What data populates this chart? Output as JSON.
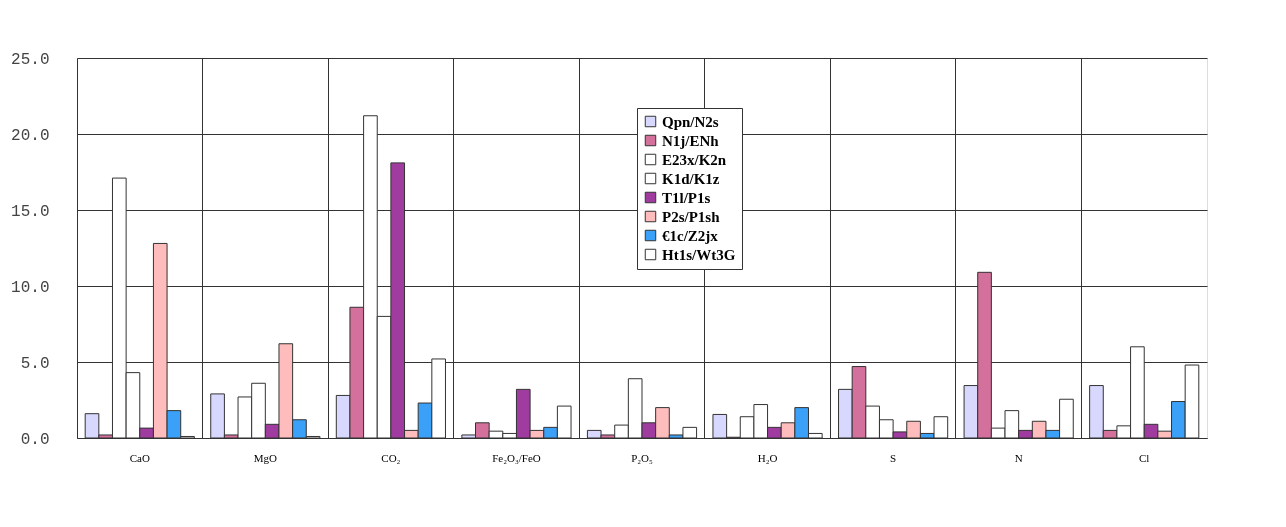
{
  "chart_data": {
    "type": "bar",
    "categories": [
      "CaO",
      "MgO",
      "CO₂",
      "Fe₂O₃/FeO",
      "P₂O₅",
      "H₂O",
      "S",
      "N",
      "Cl"
    ],
    "series": [
      {
        "name": "Qpn/N2s",
        "color": "#d8d8ff",
        "values": [
          1.6,
          2.9,
          2.8,
          0.2,
          0.5,
          1.55,
          3.2,
          3.45,
          3.45
        ]
      },
      {
        "name": "N1j/ENh",
        "color": "#d4709c",
        "values": [
          0.2,
          0.2,
          8.6,
          1.0,
          0.2,
          0.05,
          4.7,
          10.9,
          0.5
        ]
      },
      {
        "name": "E23x/K2n",
        "color": "#ffffff",
        "values": [
          17.1,
          2.7,
          21.2,
          0.45,
          0.85,
          1.4,
          2.1,
          0.65,
          0.8
        ]
      },
      {
        "name": "K1d/K1z",
        "color": "#ffffff",
        "values": [
          4.3,
          3.6,
          8.0,
          0.3,
          3.9,
          2.2,
          1.2,
          1.8,
          6.0
        ]
      },
      {
        "name": "T1l/P1s",
        "color": "#a03ca0",
        "values": [
          0.65,
          0.9,
          18.1,
          3.2,
          1.0,
          0.7,
          0.4,
          0.5,
          0.9
        ]
      },
      {
        "name": "P2s/P1sh",
        "color": "#ffbcbc",
        "values": [
          12.8,
          6.2,
          0.5,
          0.5,
          2.0,
          1.0,
          1.1,
          1.1,
          0.45
        ]
      },
      {
        "name": "€1c/Z2jx",
        "color": "#3aa0f8",
        "values": [
          1.8,
          1.2,
          2.3,
          0.7,
          0.2,
          2.0,
          0.3,
          0.5,
          2.4
        ]
      },
      {
        "name": "Ht1s/Wt3G",
        "color": "#ffffff",
        "values": [
          0.1,
          0.1,
          5.2,
          2.1,
          0.7,
          0.3,
          1.4,
          2.55,
          4.8
        ]
      }
    ],
    "ylim": [
      0,
      25
    ],
    "yticks": [
      {
        "value": 0,
        "label": "0.0"
      },
      {
        "value": 5,
        "label": "5.0"
      },
      {
        "value": 10,
        "label": "10.0"
      },
      {
        "value": 15,
        "label": "15.0"
      },
      {
        "value": 20,
        "label": "20.0"
      },
      {
        "value": 25,
        "label": "25.0"
      }
    ],
    "grid": true,
    "legend": "top"
  }
}
